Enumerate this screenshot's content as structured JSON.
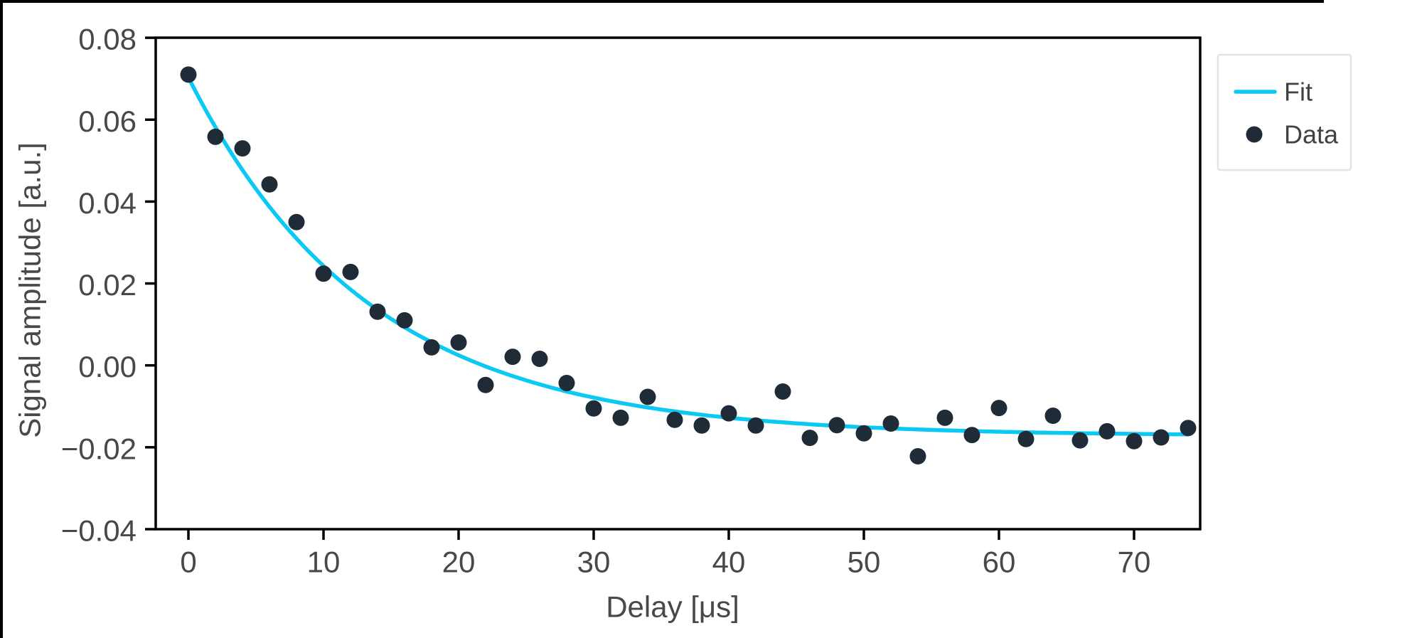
{
  "chart_data": {
    "type": "scatter",
    "title": "",
    "xlabel": "Delay [μs]",
    "ylabel": "Signal amplitude [a.u.]",
    "xlim": [
      -2.4,
      74.9
    ],
    "ylim": [
      -0.04,
      0.08
    ],
    "grid": false,
    "x_ticks": {
      "values": [
        0,
        10,
        20,
        30,
        40,
        50,
        60,
        70
      ],
      "labels": [
        "0",
        "10",
        "20",
        "30",
        "40",
        "50",
        "60",
        "70"
      ]
    },
    "y_ticks": {
      "values": [
        0.08,
        0.06,
        0.04,
        0.02,
        0.0,
        -0.02,
        -0.04
      ],
      "labels": [
        "0.08",
        "0.06",
        "0.04",
        "0.02",
        "0.00",
        "−0.02",
        "−0.04"
      ]
    },
    "legend": {
      "position": "outside-upper-right",
      "entries": [
        {
          "label": "Fit",
          "marker": "line",
          "color": "#0BC9F2"
        },
        {
          "label": "Data",
          "marker": "dot",
          "color": "#1F2C37"
        }
      ]
    },
    "series": [
      {
        "name": "Data",
        "type": "scatter",
        "color": "#1F2C37",
        "x": [
          0,
          2,
          4,
          6,
          8,
          10,
          12,
          14,
          16,
          18,
          20,
          22,
          24,
          26,
          28,
          30,
          32,
          34,
          36,
          38,
          40,
          42,
          44,
          46,
          48,
          50,
          52,
          54,
          56,
          58,
          60,
          62,
          64,
          66,
          68,
          70,
          72,
          74
        ],
        "y": [
          0.071,
          0.0558,
          0.053,
          0.0442,
          0.035,
          0.0224,
          0.0228,
          0.0131,
          0.011,
          0.0044,
          0.0056,
          -0.0048,
          0.0021,
          0.0016,
          -0.0043,
          -0.0105,
          -0.0128,
          -0.0077,
          -0.0133,
          -0.0147,
          -0.0117,
          -0.0147,
          -0.0064,
          -0.0177,
          -0.0146,
          -0.0166,
          -0.0142,
          -0.0222,
          -0.0128,
          -0.017,
          -0.0104,
          -0.018,
          -0.0123,
          -0.0183,
          -0.0161,
          -0.0185,
          -0.0176,
          -0.0153
        ]
      },
      {
        "name": "Fit",
        "type": "line",
        "color": "#0BC9F2",
        "model": "A*exp(-t/tau)+C",
        "params": {
          "A": 0.0875,
          "tau": 13.4,
          "C": -0.0172
        },
        "x_range": [
          0,
          74
        ]
      }
    ],
    "axis_color": "#000000",
    "tick_label_color": "#484848"
  }
}
